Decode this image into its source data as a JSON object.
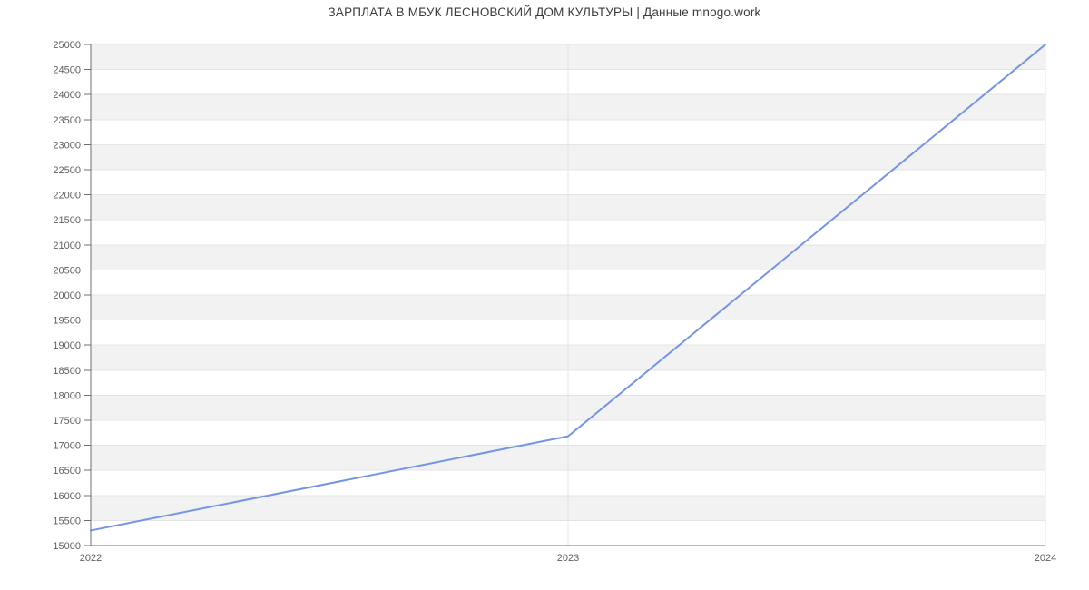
{
  "chart_data": {
    "type": "line",
    "title": "ЗАРПЛАТА В МБУК ЛЕСНОВСКИЙ ДОМ КУЛЬТУРЫ | Данные mnogo.work",
    "x": [
      "2022",
      "2023",
      "2024"
    ],
    "values": [
      15300,
      17180,
      25000
    ],
    "ylim": [
      15000,
      25000
    ],
    "ytick_step": 500,
    "yticks": [
      15000,
      15500,
      16000,
      16500,
      17000,
      17500,
      18000,
      18500,
      19000,
      19500,
      20000,
      20500,
      21000,
      21500,
      22000,
      22500,
      23000,
      23500,
      24000,
      24500,
      25000
    ],
    "xlabel": "",
    "ylabel": "",
    "legend_position": "none",
    "grid": true,
    "band_fill": true,
    "colors": {
      "series": "#7494e6",
      "band": "#f2f2f2",
      "gridline": "#e4e4e4",
      "axis": "#6f6f6f",
      "tick_label": "#5f5f5f",
      "title": "#3c3c3c",
      "background": "#ffffff"
    }
  }
}
